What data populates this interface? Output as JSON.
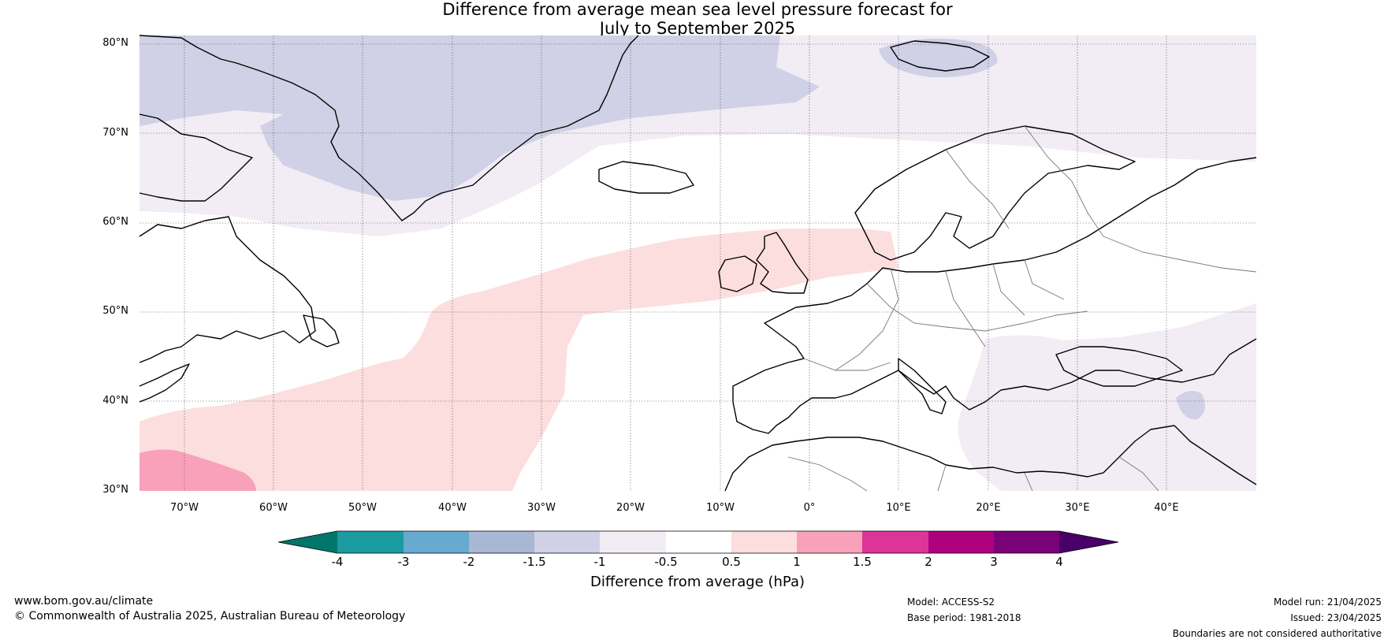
{
  "title": {
    "line1": "Difference from average mean sea level pressure forecast for",
    "line2": "July to September 2025"
  },
  "lat_labels": [
    "80°N",
    "70°N",
    "60°N",
    "50°N",
    "40°N",
    "30°N"
  ],
  "lon_labels": [
    "70°W",
    "60°W",
    "50°W",
    "40°W",
    "30°W",
    "20°W",
    "10°W",
    "0°",
    "10°E",
    "20°E",
    "30°E",
    "40°E"
  ],
  "map_extent": {
    "lon_min": -75,
    "lon_max": 50,
    "lat_min": 30,
    "lat_max": 81
  },
  "colorbar": {
    "ticks": [
      "-4",
      "-3",
      "-2",
      "-1.5",
      "-1",
      "-0.5",
      "0.5",
      "1",
      "1.5",
      "2",
      "3",
      "4"
    ],
    "colors": {
      "below": "#00766a",
      "bins": [
        "#1b9aa0",
        "#67a9cf",
        "#a8b7d4",
        "#d0d1e6",
        "#f2ecf5",
        "#ffffff",
        "#fcdedf",
        "#f9a1ba",
        "#dd3497",
        "#ae017e",
        "#7a0177"
      ],
      "above": "#49006a"
    },
    "label": "Difference from average (hPa)"
  },
  "footer": {
    "website": "www.bom.gov.au/climate",
    "copyright": "© Commonwealth of Australia 2025, Australian Bureau of Meteorology",
    "model": "Model: ACCESS-S2",
    "base_period": "Base period: 1981-2018",
    "model_run": "Model run: 21/04/2025",
    "issued": "Issued: 23/04/2025",
    "disclaimer": "Boundaries are not considered authoritative"
  }
}
